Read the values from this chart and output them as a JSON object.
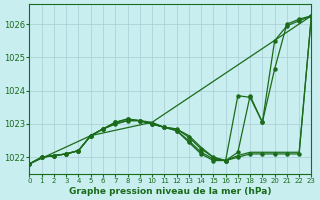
{
  "title": "Graphe pression niveau de la mer (hPa)",
  "bg_color": "#c8eef0",
  "grid_color": "#a8cdd4",
  "line_color": "#1a6b1a",
  "xlim": [
    0,
    23
  ],
  "ylim": [
    1021.5,
    1026.6
  ],
  "yticks": [
    1022,
    1023,
    1024,
    1025,
    1026
  ],
  "xticks": [
    0,
    1,
    2,
    3,
    4,
    5,
    6,
    7,
    8,
    9,
    10,
    11,
    12,
    13,
    14,
    15,
    16,
    17,
    18,
    19,
    20,
    21,
    22,
    23
  ],
  "lines": [
    {
      "x": [
        0,
        1,
        2,
        3,
        4,
        5,
        6,
        7,
        8,
        9,
        10,
        11,
        12,
        13,
        14,
        15,
        16,
        17,
        18,
        19,
        20,
        21,
        22,
        23
      ],
      "y": [
        1021.8,
        1022.0,
        1022.05,
        1022.1,
        1022.2,
        1022.65,
        1022.85,
        1023.0,
        1023.1,
        1023.1,
        1023.0,
        1022.9,
        1022.85,
        1022.6,
        1022.25,
        1022.0,
        1021.9,
        1022.0,
        1022.1,
        1022.1,
        1022.1,
        1022.1,
        1022.1,
        1026.25
      ],
      "marker": true
    },
    {
      "x": [
        0,
        1,
        2,
        3,
        4,
        5,
        6,
        7,
        8,
        9,
        10,
        11,
        12,
        13,
        14,
        15,
        16,
        17,
        18,
        19,
        20,
        21,
        22,
        23
      ],
      "y": [
        1021.8,
        1022.0,
        1022.05,
        1022.1,
        1022.2,
        1022.65,
        1022.85,
        1023.0,
        1023.1,
        1023.1,
        1023.05,
        1022.9,
        1022.85,
        1022.65,
        1022.3,
        1022.0,
        1021.9,
        1022.05,
        1022.15,
        1022.15,
        1022.15,
        1022.15,
        1022.15,
        1026.25
      ],
      "marker": false
    },
    {
      "x": [
        0,
        5,
        10,
        23
      ],
      "y": [
        1021.8,
        1022.65,
        1023.05,
        1026.25
      ],
      "marker": false
    },
    {
      "x": [
        0,
        1,
        2,
        3,
        4,
        5,
        6,
        7,
        8,
        9,
        10,
        11,
        12,
        13,
        14,
        15,
        16,
        17,
        18,
        19,
        20,
        21,
        22,
        23
      ],
      "y": [
        1021.8,
        1022.0,
        1022.05,
        1022.1,
        1022.2,
        1022.65,
        1022.85,
        1023.05,
        1023.15,
        1023.1,
        1023.0,
        1022.9,
        1022.8,
        1022.5,
        1022.15,
        1021.95,
        1021.9,
        1023.85,
        1023.8,
        1023.05,
        1024.65,
        1026.0,
        1026.15,
        1026.25
      ],
      "marker": true
    },
    {
      "x": [
        0,
        1,
        2,
        3,
        4,
        5,
        6,
        7,
        8,
        9,
        10,
        11,
        12,
        13,
        14,
        15,
        16,
        17,
        18,
        19,
        20,
        21,
        22,
        23
      ],
      "y": [
        1021.8,
        1022.0,
        1022.05,
        1022.1,
        1022.2,
        1022.65,
        1022.85,
        1023.05,
        1023.15,
        1023.1,
        1023.0,
        1022.9,
        1022.8,
        1022.45,
        1022.1,
        1021.9,
        1021.9,
        1022.15,
        1023.85,
        1023.05,
        1025.5,
        1025.95,
        1026.1,
        1026.25
      ],
      "marker": true
    }
  ]
}
